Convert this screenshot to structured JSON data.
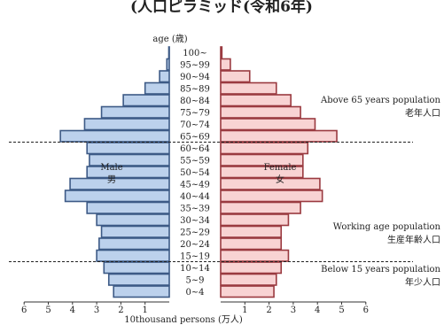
{
  "header": {
    "title_partial": "(人口ピラミッド(令和6年)"
  },
  "chart_data": {
    "type": "bar",
    "orientation": "horizontal",
    "population_pyramid": true,
    "y_axis_title": "age (歳)",
    "x_axis_title": "10thousand persons (万人)",
    "xlim": [
      0,
      6
    ],
    "x_ticks_left": [
      "6",
      "5",
      "4",
      "3",
      "2",
      "1"
    ],
    "x_ticks_right": [
      "1",
      "2",
      "3",
      "4",
      "5",
      "6"
    ],
    "categories": [
      "0~4",
      "5~9",
      "10~14",
      "15~19",
      "20~24",
      "25~29",
      "30~34",
      "35~39",
      "40~44",
      "45~49",
      "50~54",
      "55~59",
      "60~64",
      "65~69",
      "70~74",
      "75~79",
      "80~84",
      "85~89",
      "90~94",
      "95~99",
      "100~"
    ],
    "series": [
      {
        "name": "Male 男",
        "values": [
          2.3,
          2.5,
          2.7,
          3.0,
          2.9,
          2.8,
          3.0,
          3.4,
          4.3,
          4.1,
          3.4,
          3.3,
          3.4,
          4.5,
          3.5,
          2.8,
          1.9,
          1.0,
          0.4,
          0.1,
          0.02
        ]
      },
      {
        "name": "Female 女",
        "values": [
          2.2,
          2.3,
          2.5,
          2.8,
          2.5,
          2.5,
          2.8,
          3.3,
          4.2,
          4.1,
          3.4,
          3.4,
          3.6,
          4.8,
          3.9,
          3.3,
          2.9,
          2.3,
          1.2,
          0.4,
          0.05
        ]
      }
    ],
    "bar_labels": {
      "male_en": "Male",
      "male_zh": "男",
      "female_en": "Female",
      "female_zh": "女"
    },
    "annotations": [
      {
        "en": "Above 65 years population",
        "zh": "老年人口"
      },
      {
        "en": "Working age population",
        "zh": "生産年齢人口"
      },
      {
        "en": "Below 15 years population",
        "zh": "年少人口"
      }
    ],
    "colors": {
      "male_fill": "#bcd1ec",
      "male_stroke": "#3d5a86",
      "female_fill": "#f8d3d3",
      "female_stroke": "#9a3a40"
    }
  }
}
